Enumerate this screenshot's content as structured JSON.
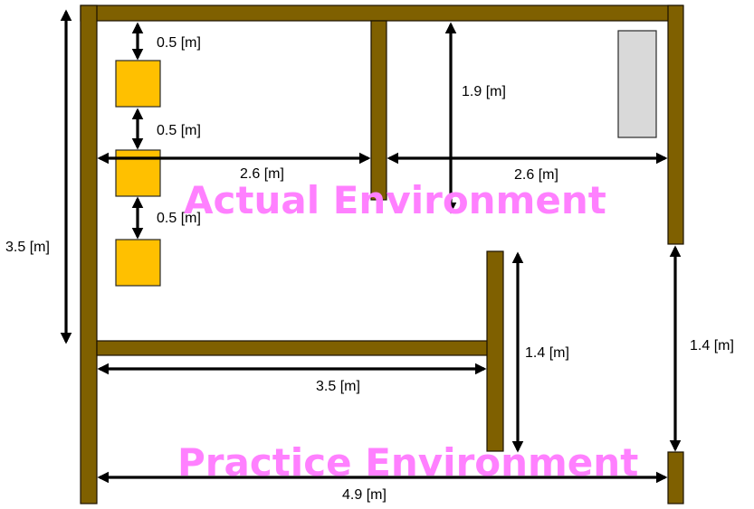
{
  "diagram": {
    "title_actual": "Actual Environment",
    "title_practice": "Practice Environment",
    "colors": {
      "wall": "#7f6000",
      "box": "#ffc000",
      "cabinet": "#d9d9d9",
      "label": "#ff80ff",
      "arrow": "#000000"
    },
    "dimensions": {
      "box_gap_top": "0.5 [m]",
      "box_gap_middle": "0.5 [m]",
      "box_gap_bottom": "0.5 [m]",
      "left_room_width": "2.6 [m]",
      "right_room_width": "2.6 [m]",
      "right_room_depth": "1.9 [m]",
      "overall_height": "3.5 [m]",
      "partition_length": "3.5 [m]",
      "stub_wall_length": "1.4 [m]",
      "right_opening": "1.4 [m]",
      "overall_width": "4.9 [m]"
    }
  }
}
